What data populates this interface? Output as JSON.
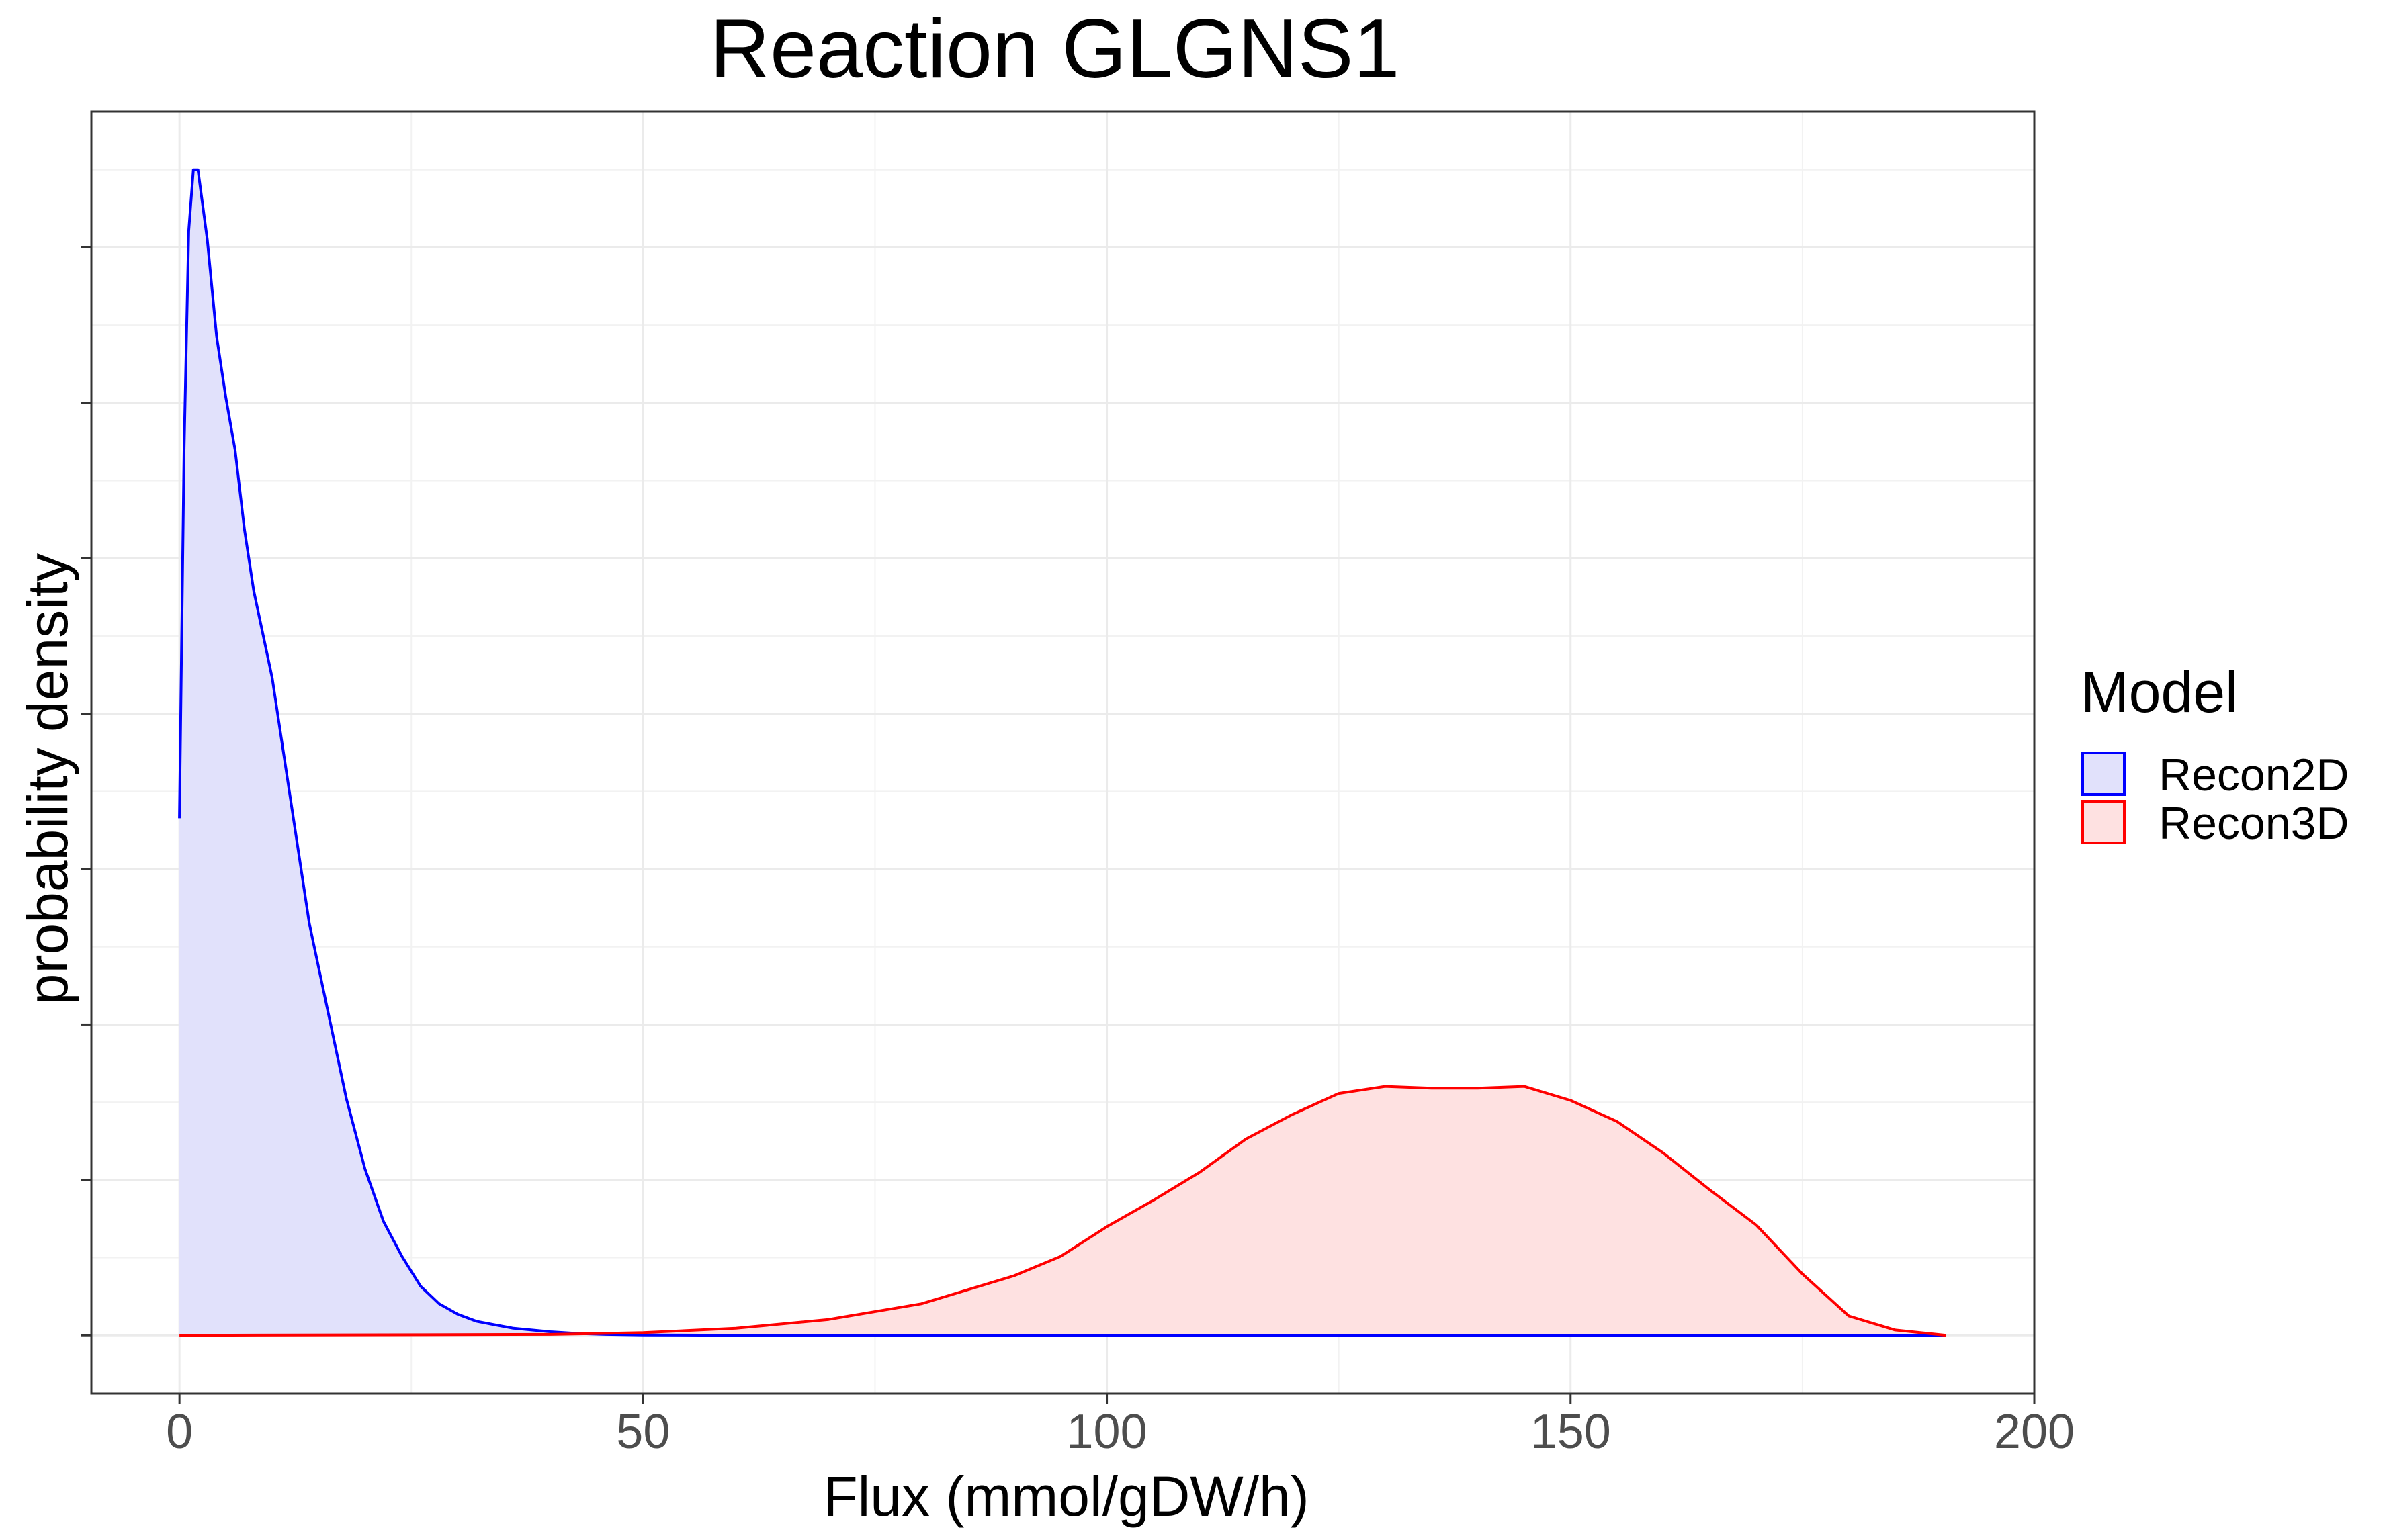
{
  "chart_data": {
    "type": "area",
    "title": "Reaction GLGNS1",
    "xlabel": "Flux (mmol/gDW/h)",
    "ylabel": "probability density",
    "xlim": [
      -9.5,
      200
    ],
    "x_ticks": [
      0,
      50,
      100,
      150,
      200
    ],
    "y_tick_labels_shown": false,
    "grid": true,
    "legend": {
      "title": "Model",
      "position": "right"
    },
    "series": [
      {
        "name": "Recon2D",
        "color": "#0000ff",
        "fill": "#e1e1fb",
        "x": [
          0,
          0.5,
          1,
          1.5,
          2,
          3,
          4,
          5,
          6,
          7,
          8,
          10,
          12,
          14,
          16,
          18,
          20,
          22,
          24,
          26,
          28,
          30,
          32,
          34,
          36,
          38,
          40,
          43,
          46,
          50,
          60,
          80,
          120,
          160,
          190.5
        ],
        "y": [
          0.0295,
          0.0505,
          0.063,
          0.0665,
          0.0665,
          0.0625,
          0.057,
          0.0535,
          0.0505,
          0.046,
          0.0425,
          0.0375,
          0.0305,
          0.0235,
          0.0185,
          0.0135,
          0.0095,
          0.0065,
          0.0045,
          0.0028,
          0.0018,
          0.0012,
          0.0008,
          0.0006,
          0.0004,
          0.0003,
          0.0002,
          0.0001,
          5e-05,
          2e-05,
          0,
          0,
          0,
          0,
          0
        ]
      },
      {
        "name": "Recon3D",
        "color": "#ff0000",
        "fill": "#fee1e1",
        "x": [
          0,
          40,
          50,
          60,
          70,
          80,
          90,
          95,
          100,
          105,
          110,
          115,
          120,
          125,
          130,
          135,
          140,
          145,
          150,
          155,
          160,
          165,
          170,
          175,
          180,
          185,
          190.5
        ],
        "y": [
          0,
          5e-05,
          0.00015,
          0.0004,
          0.0009,
          0.0018,
          0.0034,
          0.0045,
          0.0062,
          0.0077,
          0.0093,
          0.0112,
          0.0126,
          0.0138,
          0.0142,
          0.0141,
          0.0141,
          0.0142,
          0.0134,
          0.0122,
          0.0104,
          0.0083,
          0.0063,
          0.0035,
          0.0011,
          0.0003,
          0
        ]
      }
    ]
  }
}
